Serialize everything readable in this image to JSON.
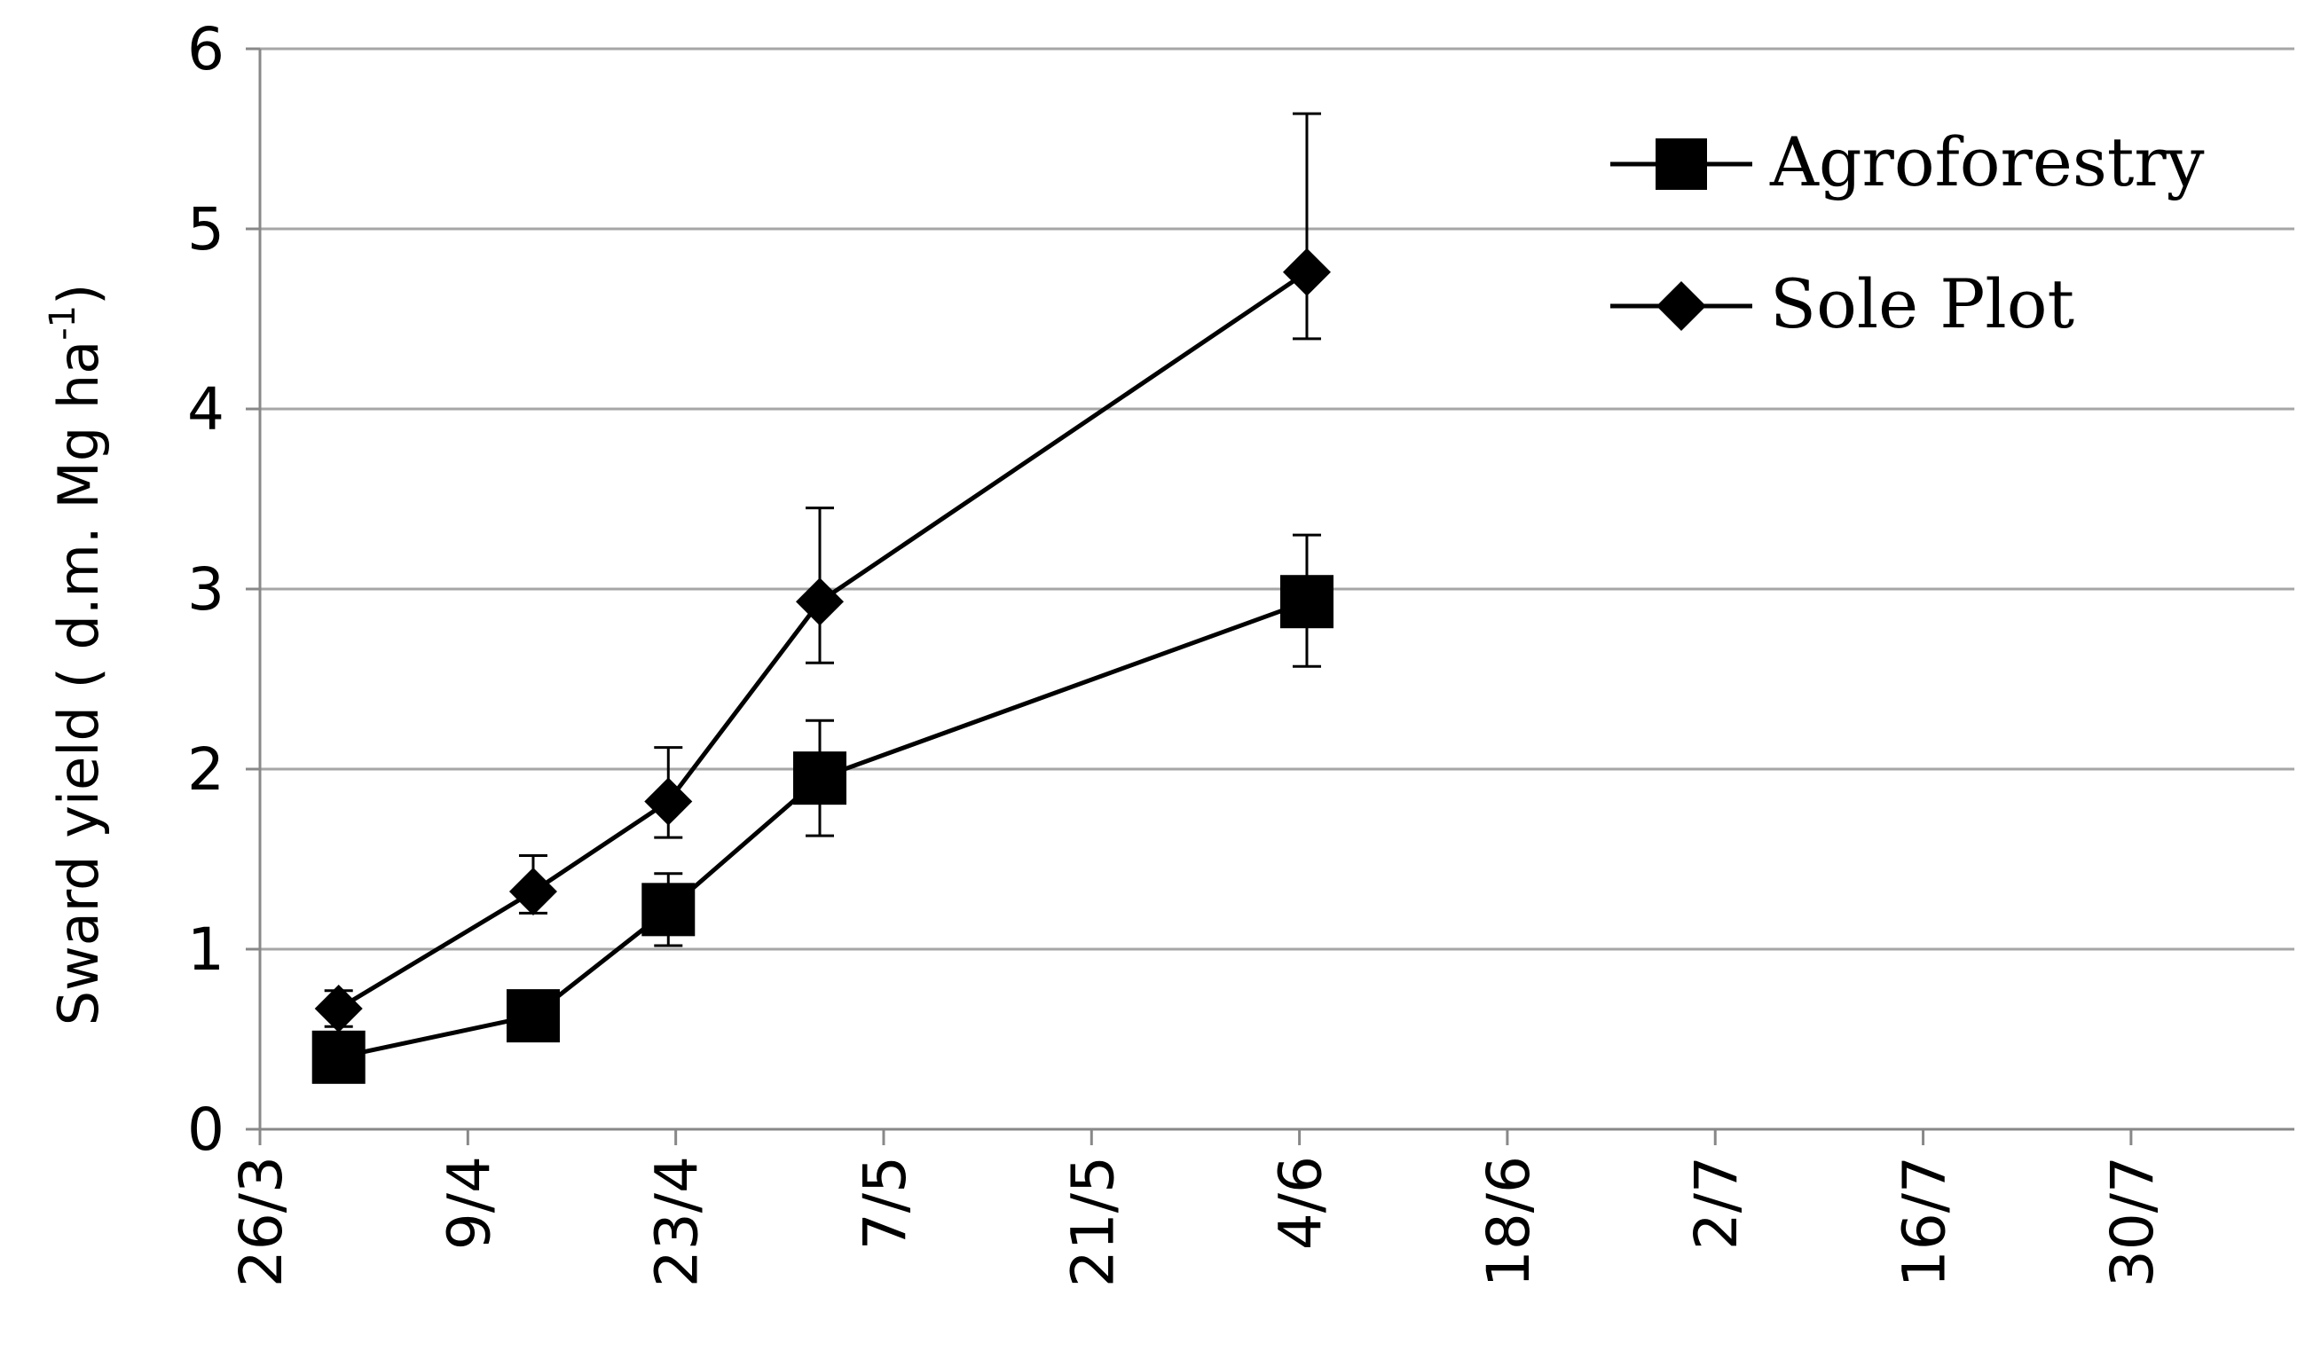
{
  "chart_data": {
    "type": "line",
    "ylabel": "Sward yield ( d.m. Mg ha",
    "ylabel_sup": "-1",
    "ylabel_close": ")",
    "xlabel": "",
    "title": "",
    "ylim": [
      0,
      6
    ],
    "y_ticks": [
      "0",
      "1",
      "2",
      "3",
      "4",
      "5",
      "6"
    ],
    "x_ticks": [
      "26/3",
      "9/4",
      "23/4",
      "7/5",
      "21/5",
      "4/6",
      "18/6",
      "2/7",
      "16/7",
      "30/7"
    ],
    "x_tick_day_of_year": [
      85,
      99,
      113,
      127,
      141,
      155,
      169,
      183,
      197,
      211
    ],
    "xlim_day_of_year": [
      85,
      222
    ],
    "grid": {
      "horizontal": true,
      "vertical": false
    },
    "legend_position": "top-right",
    "series": [
      {
        "name": "Agroforestry",
        "marker": "square",
        "color": "#000000",
        "points": [
          {
            "x": "31/3",
            "x_doy": 90.3,
            "y": 0.4,
            "err_low": 0.3,
            "err_high": 0.48
          },
          {
            "x": "13/4",
            "x_doy": 103.4,
            "y": 0.63,
            "err_low": 0.58,
            "err_high": 0.7
          },
          {
            "x": "22/4",
            "x_doy": 112.5,
            "y": 1.22,
            "err_low": 1.02,
            "err_high": 1.42
          },
          {
            "x": "2/5",
            "x_doy": 122.7,
            "y": 1.95,
            "err_low": 1.63,
            "err_high": 2.27
          },
          {
            "x": "4/6",
            "x_doy": 155.5,
            "y": 2.93,
            "err_low": 2.57,
            "err_high": 3.3
          }
        ]
      },
      {
        "name": "Sole Plot",
        "marker": "diamond",
        "color": "#000000",
        "points": [
          {
            "x": "31/3",
            "x_doy": 90.3,
            "y": 0.67,
            "err_low": 0.57,
            "err_high": 0.77
          },
          {
            "x": "13/4",
            "x_doy": 103.4,
            "y": 1.32,
            "err_low": 1.2,
            "err_high": 1.52
          },
          {
            "x": "22/4",
            "x_doy": 112.5,
            "y": 1.82,
            "err_low": 1.62,
            "err_high": 2.12
          },
          {
            "x": "2/5",
            "x_doy": 122.7,
            "y": 2.93,
            "err_low": 2.59,
            "err_high": 3.45
          },
          {
            "x": "4/6",
            "x_doy": 155.5,
            "y": 4.76,
            "err_low": 4.39,
            "err_high": 5.64
          }
        ]
      }
    ]
  }
}
